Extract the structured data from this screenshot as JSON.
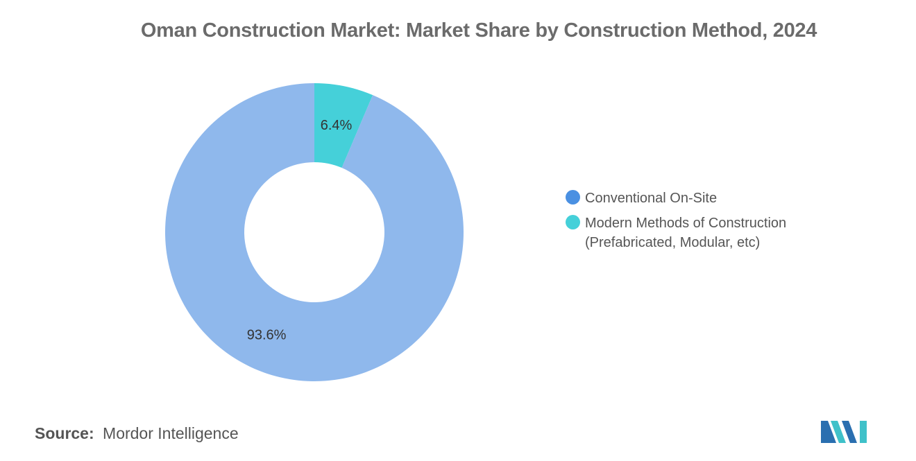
{
  "title": "Oman Construction Market: Market Share by Construction Method, 2024",
  "chart_data": {
    "type": "pie",
    "style": "donut",
    "title": "Oman Construction Market: Market Share by Construction Method, 2024",
    "slices": [
      {
        "name": "Modern Methods of Construction (Prefabricated, Modular, etc)",
        "value": 6.4,
        "label": "6.4%",
        "color": "#45d0d9"
      },
      {
        "name": "Conventional On-Site",
        "value": 93.6,
        "label": "93.6%",
        "color": "#8fb8ec"
      }
    ],
    "legend": {
      "position": "right",
      "entries": [
        {
          "name": "Conventional On-Site",
          "color": "#4a90e2"
        },
        {
          "name": "Modern Methods of Construction (Prefabricated, Modular, etc)",
          "color": "#45d0d9"
        }
      ]
    }
  },
  "source": {
    "key": "Source:",
    "value": "Mordor Intelligence"
  },
  "logo": {
    "icon": "mordor-intelligence-logo-icon",
    "colors": [
      "#2a6fb0",
      "#3fc1c9"
    ]
  }
}
